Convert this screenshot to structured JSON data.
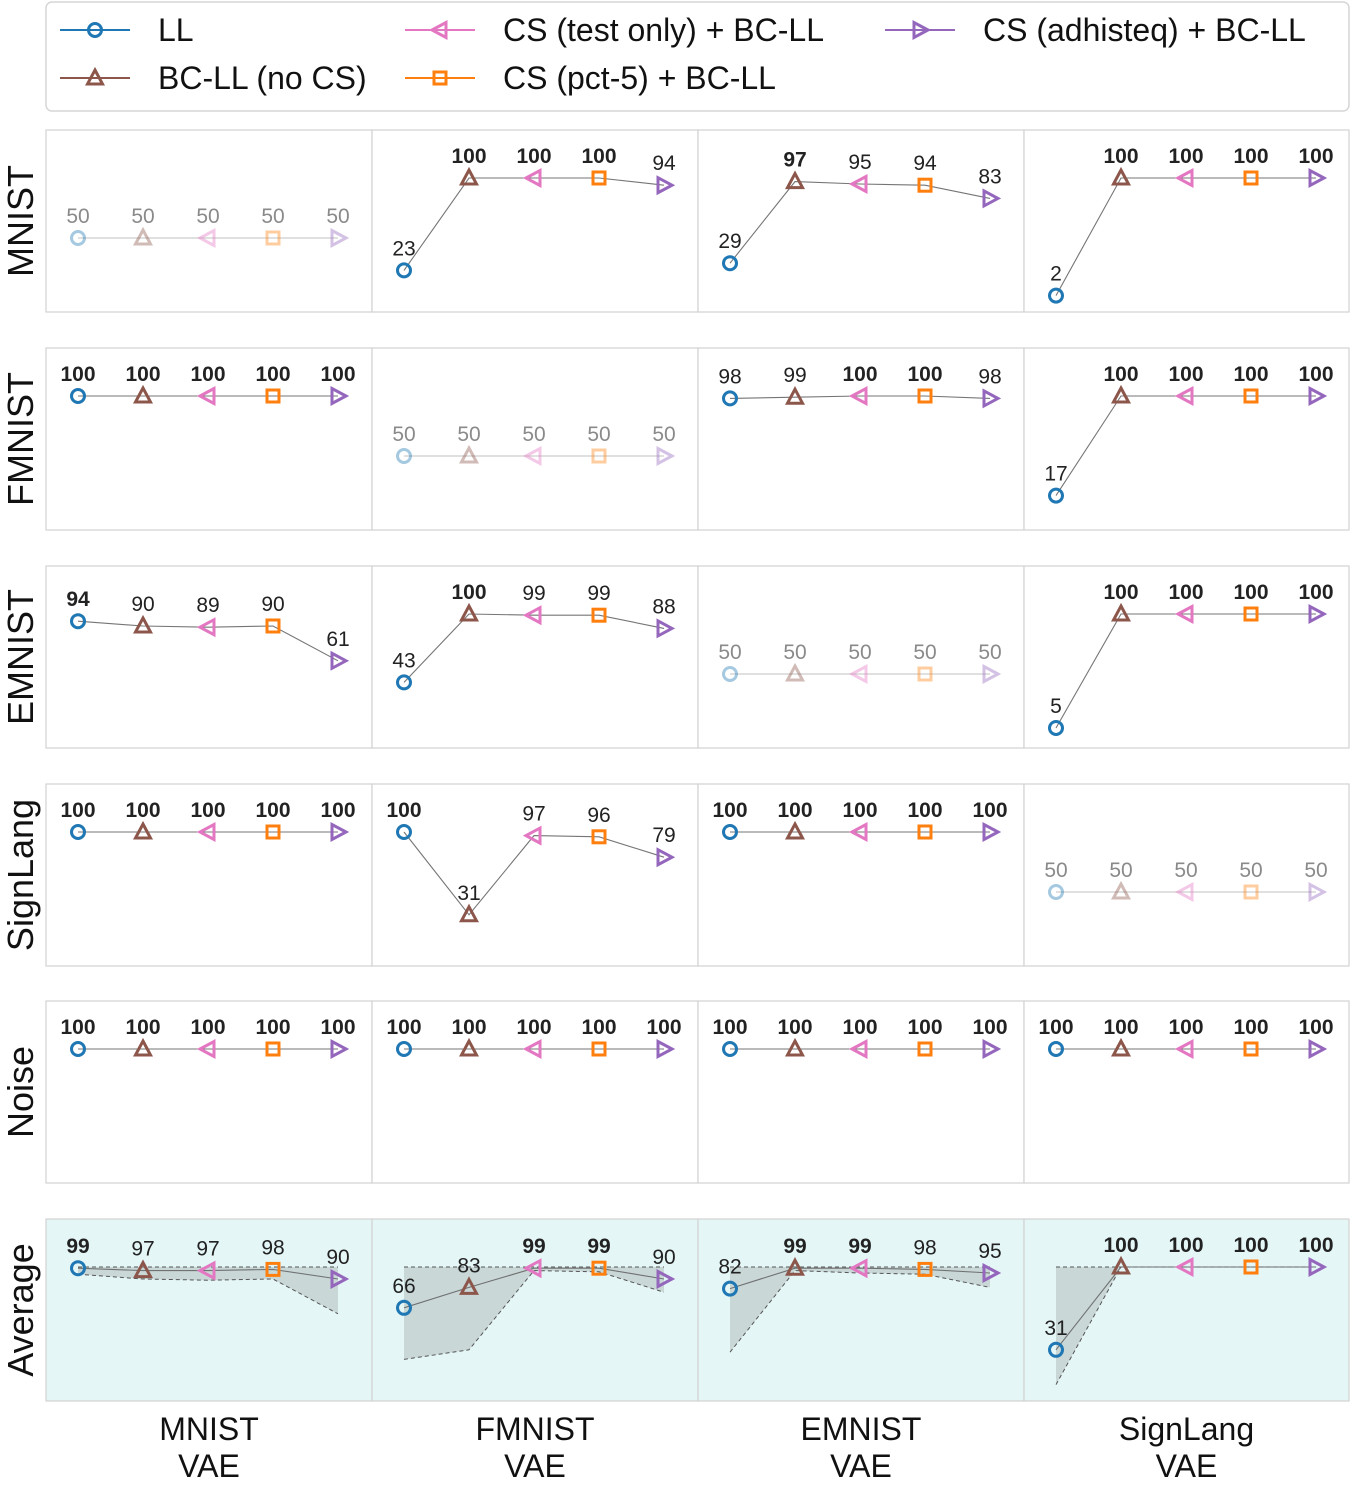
{
  "legend": [
    {
      "key": "ll",
      "label": "LL",
      "color": "#1f77b4",
      "marker": "circle"
    },
    {
      "key": "bcll",
      "label": "BC-LL (no CS)",
      "color": "#8c564b",
      "marker": "triangle-up"
    },
    {
      "key": "cs_test",
      "label": "CS (test only) +  BC-LL",
      "color": "#e377c2",
      "marker": "triangle-left"
    },
    {
      "key": "cs_pct5",
      "label": "CS (pct-5) + BC-LL",
      "color": "#ff7f0e",
      "marker": "square"
    },
    {
      "key": "cs_adhisteq",
      "label": "CS (adhisteq) + BC-LL",
      "color": "#9467bd",
      "marker": "triangle-right"
    }
  ],
  "chart_data": {
    "type": "line",
    "ylim": [
      0,
      100
    ],
    "grid": false,
    "legend_position": "top",
    "columns": [
      "MNIST\nVAE",
      "FMNIST\nVAE",
      "EMNIST\nVAE",
      "SignLang\nVAE"
    ],
    "rows": [
      "MNIST",
      "FMNIST",
      "EMNIST",
      "SignLang",
      "Noise",
      "Average"
    ],
    "series_order": [
      "LL",
      "BC-LL (no CS)",
      "CS (test only) +  BC-LL",
      "CS (pct-5) + BC-LL",
      "CS (adhisteq) + BC-LL"
    ],
    "values": [
      [
        [
          50,
          50,
          50,
          50,
          50
        ],
        [
          23,
          100,
          100,
          100,
          94
        ],
        [
          29,
          97,
          95,
          94,
          83
        ],
        [
          2,
          100,
          100,
          100,
          100
        ]
      ],
      [
        [
          100,
          100,
          100,
          100,
          100
        ],
        [
          50,
          50,
          50,
          50,
          50
        ],
        [
          98,
          99,
          100,
          100,
          98
        ],
        [
          17,
          100,
          100,
          100,
          100
        ]
      ],
      [
        [
          94,
          90,
          89,
          90,
          61
        ],
        [
          43,
          100,
          99,
          99,
          88
        ],
        [
          50,
          50,
          50,
          50,
          50
        ],
        [
          5,
          100,
          100,
          100,
          100
        ]
      ],
      [
        [
          100,
          100,
          100,
          100,
          100
        ],
        [
          100,
          31,
          97,
          96,
          79
        ],
        [
          100,
          100,
          100,
          100,
          100
        ],
        [
          50,
          50,
          50,
          50,
          50
        ]
      ],
      [
        [
          100,
          100,
          100,
          100,
          100
        ],
        [
          100,
          100,
          100,
          100,
          100
        ],
        [
          100,
          100,
          100,
          100,
          100
        ],
        [
          100,
          100,
          100,
          100,
          100
        ]
      ],
      [
        [
          99,
          97,
          97,
          98,
          90
        ],
        [
          66,
          83,
          99,
          99,
          90
        ],
        [
          82,
          99,
          99,
          98,
          95
        ],
        [
          31,
          100,
          100,
          100,
          100
        ]
      ]
    ],
    "average_range_upper": [
      [
        100,
        100,
        100,
        100,
        100
      ],
      [
        100,
        100,
        100,
        100,
        100
      ],
      [
        100,
        100,
        100,
        100,
        100
      ],
      [
        100,
        100,
        100,
        100,
        100
      ]
    ],
    "average_range_lower": [
      [
        94,
        90,
        89,
        90,
        61
      ],
      [
        23,
        31,
        97,
        96,
        79
      ],
      [
        29,
        97,
        95,
        94,
        83
      ],
      [
        2,
        100,
        100,
        100,
        100
      ]
    ],
    "faded_cells": [
      [
        0,
        0
      ],
      [
        1,
        1
      ],
      [
        2,
        2
      ],
      [
        3,
        3
      ]
    ],
    "bold_values": [
      [
        [],
        [
          1,
          2,
          3
        ],
        [
          1
        ],
        [
          1,
          2,
          3,
          4
        ]
      ],
      [
        [
          0,
          1,
          2,
          3,
          4
        ],
        [],
        [
          2,
          3
        ],
        [
          1,
          2,
          3,
          4
        ]
      ],
      [
        [
          0
        ],
        [
          1
        ],
        [],
        [
          1,
          2,
          3,
          4
        ]
      ],
      [
        [
          0,
          1,
          2,
          3,
          4
        ],
        [
          0
        ],
        [
          0,
          1,
          2,
          3,
          4
        ],
        []
      ],
      [
        [
          0,
          1,
          2,
          3,
          4
        ],
        [
          0,
          1,
          2,
          3,
          4
        ],
        [
          0,
          1,
          2,
          3,
          4
        ],
        [
          0,
          1,
          2,
          3,
          4
        ]
      ],
      [
        [
          0
        ],
        [
          2,
          3
        ],
        [
          1,
          2
        ],
        [
          1,
          2,
          3,
          4
        ]
      ]
    ]
  }
}
